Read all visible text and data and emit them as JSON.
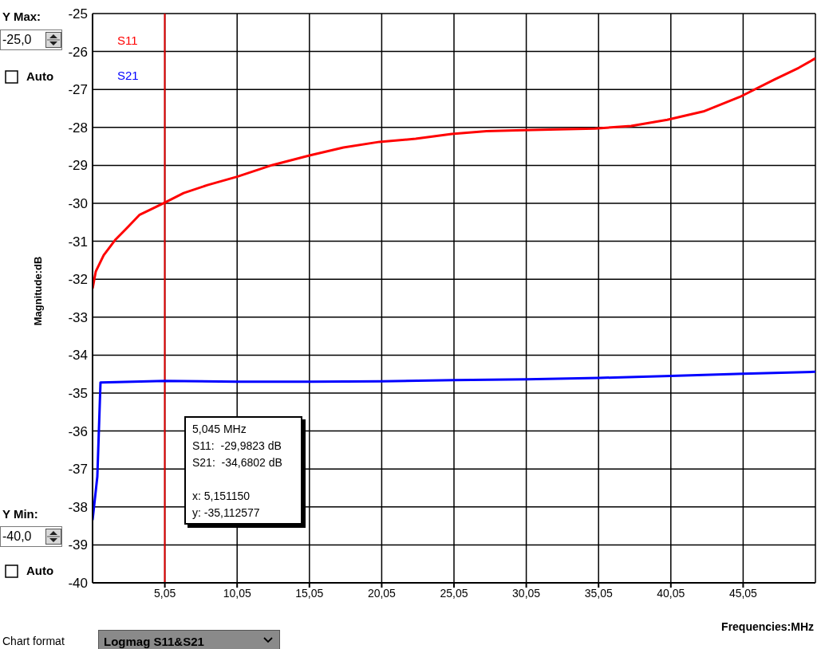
{
  "chart_data": {
    "type": "line",
    "ylabel": "Magnitude:dB",
    "xlabel": "Frequencies:MHz",
    "xlim": [
      0.05,
      50.05
    ],
    "xticks": [
      {
        "value": 5.05,
        "label": "5,05"
      },
      {
        "value": 10.05,
        "label": "10,05"
      },
      {
        "value": 15.05,
        "label": "15,05"
      },
      {
        "value": 20.05,
        "label": "20,05"
      },
      {
        "value": 25.05,
        "label": "25,05"
      },
      {
        "value": 30.05,
        "label": "30,05"
      },
      {
        "value": 35.05,
        "label": "35,05"
      },
      {
        "value": 40.05,
        "label": "40,05"
      },
      {
        "value": 45.05,
        "label": "45,05"
      }
    ],
    "ylim": [
      -40,
      -25
    ],
    "yticks": [
      -40,
      -39,
      -38,
      -37,
      -36,
      -35,
      -34,
      -33,
      -32,
      -31,
      -30,
      -29,
      -28,
      -27,
      -26,
      -25
    ],
    "grid": true,
    "legend": "top left",
    "marker": "none",
    "line_style": "solid",
    "series": [
      {
        "name": "S11",
        "color": "#ff0000",
        "x": [
          0.05,
          0.27,
          0.82,
          1.65,
          2.48,
          3.31,
          4.14,
          5.045,
          6.35,
          8.0,
          10.05,
          12.5,
          15.05,
          17.4,
          19.9,
          22.4,
          24.9,
          27.3,
          29.9,
          32.3,
          34.8,
          37.3,
          39.8,
          42.3,
          44.8,
          47.2,
          48.9,
          50.05
        ],
        "values": [
          -32.25,
          -31.8,
          -31.37,
          -30.95,
          -30.63,
          -30.3,
          -30.15,
          -29.98,
          -29.73,
          -29.52,
          -29.3,
          -28.99,
          -28.74,
          -28.53,
          -28.38,
          -28.3,
          -28.17,
          -28.1,
          -28.07,
          -28.05,
          -28.03,
          -27.96,
          -27.8,
          -27.58,
          -27.2,
          -26.74,
          -26.43,
          -26.18
        ]
      },
      {
        "name": "S21",
        "color": "#0000ff",
        "x": [
          0.05,
          0.38,
          0.6,
          5.045,
          10.05,
          15.05,
          20.05,
          25.05,
          30.05,
          35.05,
          40.05,
          45.05,
          50.05
        ],
        "values": [
          -38.35,
          -37.2,
          -34.72,
          -34.68,
          -34.7,
          -34.7,
          -34.69,
          -34.66,
          -34.64,
          -34.6,
          -34.55,
          -34.49,
          -34.44
        ]
      }
    ],
    "ref_lines": [
      {
        "axis": "x",
        "value": 5.045,
        "color": "#e00000",
        "line_style": "solid"
      }
    ],
    "annotations": [
      "5,045 MHz",
      "S11:  -29,9823 dB",
      "S21:  -34,6802 dB",
      "x: 5,151150",
      "y: -35,112577",
      "Y Max:",
      "-25,0",
      "Auto",
      "Y Min:",
      "-40,0",
      "Auto",
      "Chart format",
      "Logmag S11&S21"
    ]
  }
}
